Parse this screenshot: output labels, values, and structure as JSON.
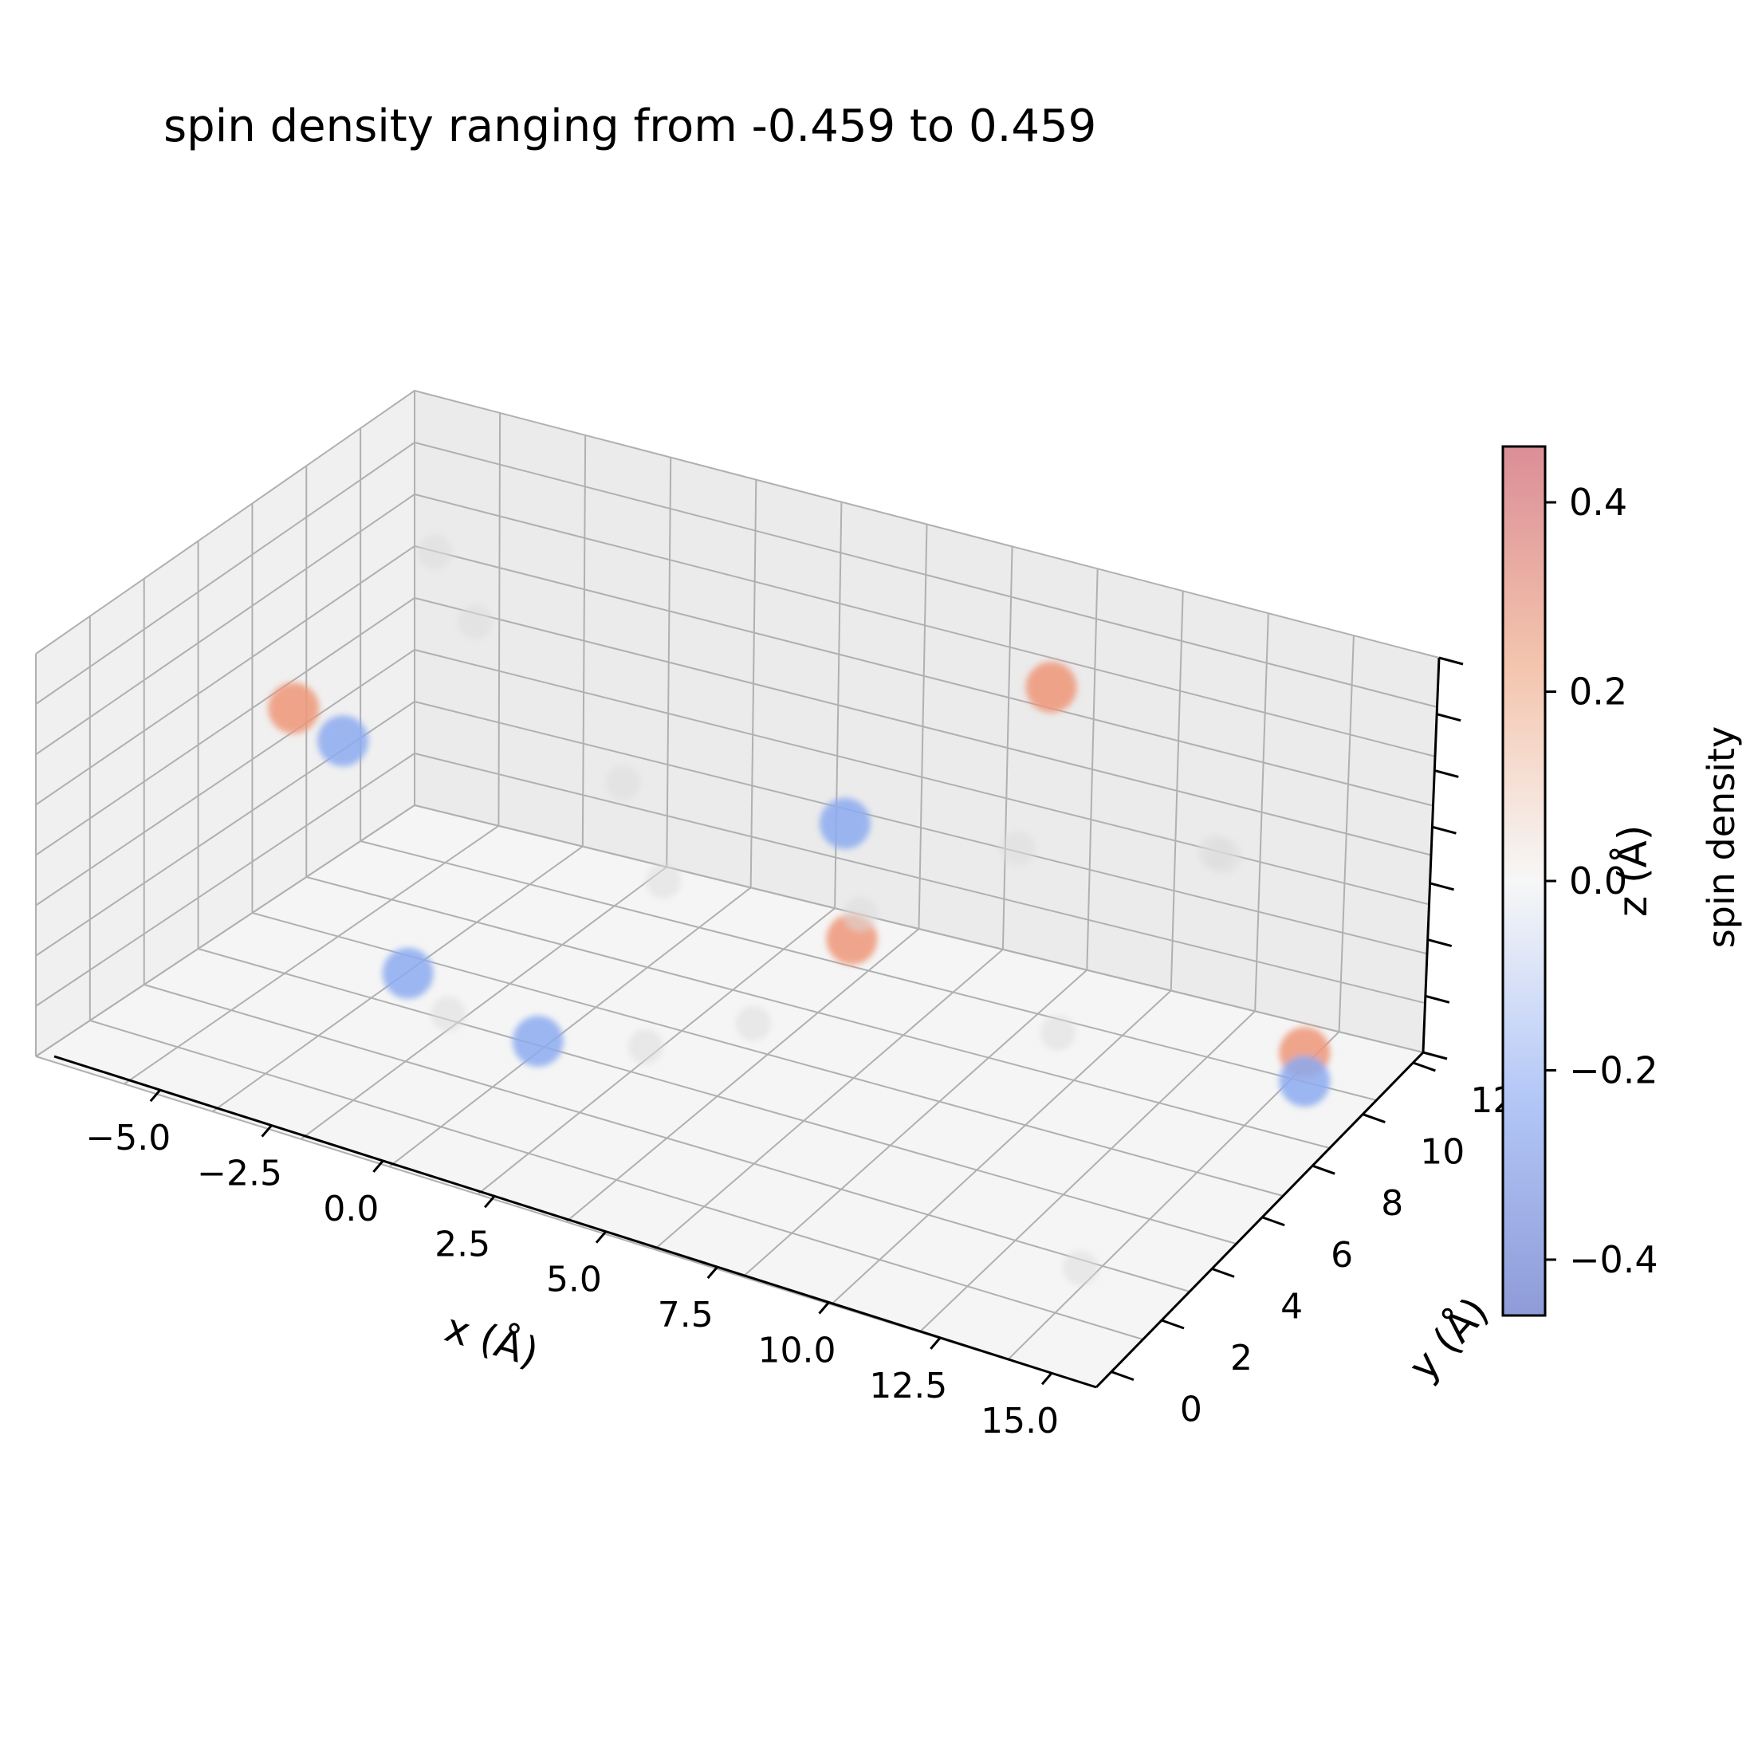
{
  "chart_data": {
    "type": "scatter",
    "projection": "3d",
    "title": "spin density ranging from -0.459 to 0.459",
    "xlabel": "x (Å)",
    "ylabel": "y (Å)",
    "zlabel": "z (Å)",
    "grid": true,
    "colormap": "coolwarm",
    "x_ticks": [
      "−5.0",
      "−2.5",
      "0.0",
      "2.5",
      "5.0",
      "7.5",
      "10.0",
      "12.5",
      "15.0"
    ],
    "y_ticks": [
      "0",
      "2",
      "4",
      "6",
      "8",
      "10",
      "12"
    ],
    "colorbar": {
      "label": "spin density",
      "range": [
        -0.459,
        0.459
      ],
      "ticks": [
        "−0.4",
        "−0.2",
        "0.0",
        "0.2",
        "0.4"
      ],
      "tick_values": [
        -0.4,
        -0.2,
        0.0,
        0.2,
        0.4
      ]
    },
    "points": [
      {
        "x": 7.5,
        "y": 12,
        "z": 6,
        "value": 0.3
      },
      {
        "x": -5.5,
        "y": 8,
        "z": 3.5,
        "value": 0.32
      },
      {
        "x": -4.5,
        "y": 8,
        "z": 3.2,
        "value": -0.28
      },
      {
        "x": 4.5,
        "y": 10,
        "z": 3.5,
        "value": -0.3
      },
      {
        "x": 7,
        "y": 6,
        "z": 3.5,
        "value": 0.3
      },
      {
        "x": 15,
        "y": 8,
        "z": 3,
        "value": 0.33
      },
      {
        "x": 15,
        "y": 8,
        "z": 2.5,
        "value": -0.18
      },
      {
        "x": 3,
        "y": 2,
        "z": 2,
        "value": -0.28
      },
      {
        "x": -2,
        "y": 6,
        "z": 0.5,
        "value": -0.15
      },
      {
        "x": -3,
        "y": 10,
        "z": 5,
        "value": 0.01
      },
      {
        "x": 0,
        "y": 10,
        "z": 3,
        "value": 0.0
      },
      {
        "x": 6,
        "y": 8,
        "z": 3,
        "value": 0.0
      },
      {
        "x": 5,
        "y": 6,
        "z": 1.5,
        "value": 0.02
      },
      {
        "x": 10,
        "y": 8,
        "z": 2,
        "value": 0.0
      },
      {
        "x": 12,
        "y": 10,
        "z": 5,
        "value": 0.0
      },
      {
        "x": 14,
        "y": 2,
        "z": 1,
        "value": 0.0
      },
      {
        "x": 0,
        "y": 4,
        "z": 1,
        "value": 0.0
      },
      {
        "x": 4,
        "y": 4,
        "z": 1.5,
        "value": 0.0
      },
      {
        "x": 8,
        "y": 10,
        "z": 4,
        "value": 0.0
      },
      {
        "x": -5,
        "y": 12,
        "z": 5,
        "value": 0.0
      },
      {
        "x": 11,
        "y": 12,
        "z": 4,
        "value": 0.0
      },
      {
        "x": 2,
        "y": 8,
        "z": 2.5,
        "value": 0.01
      }
    ]
  }
}
